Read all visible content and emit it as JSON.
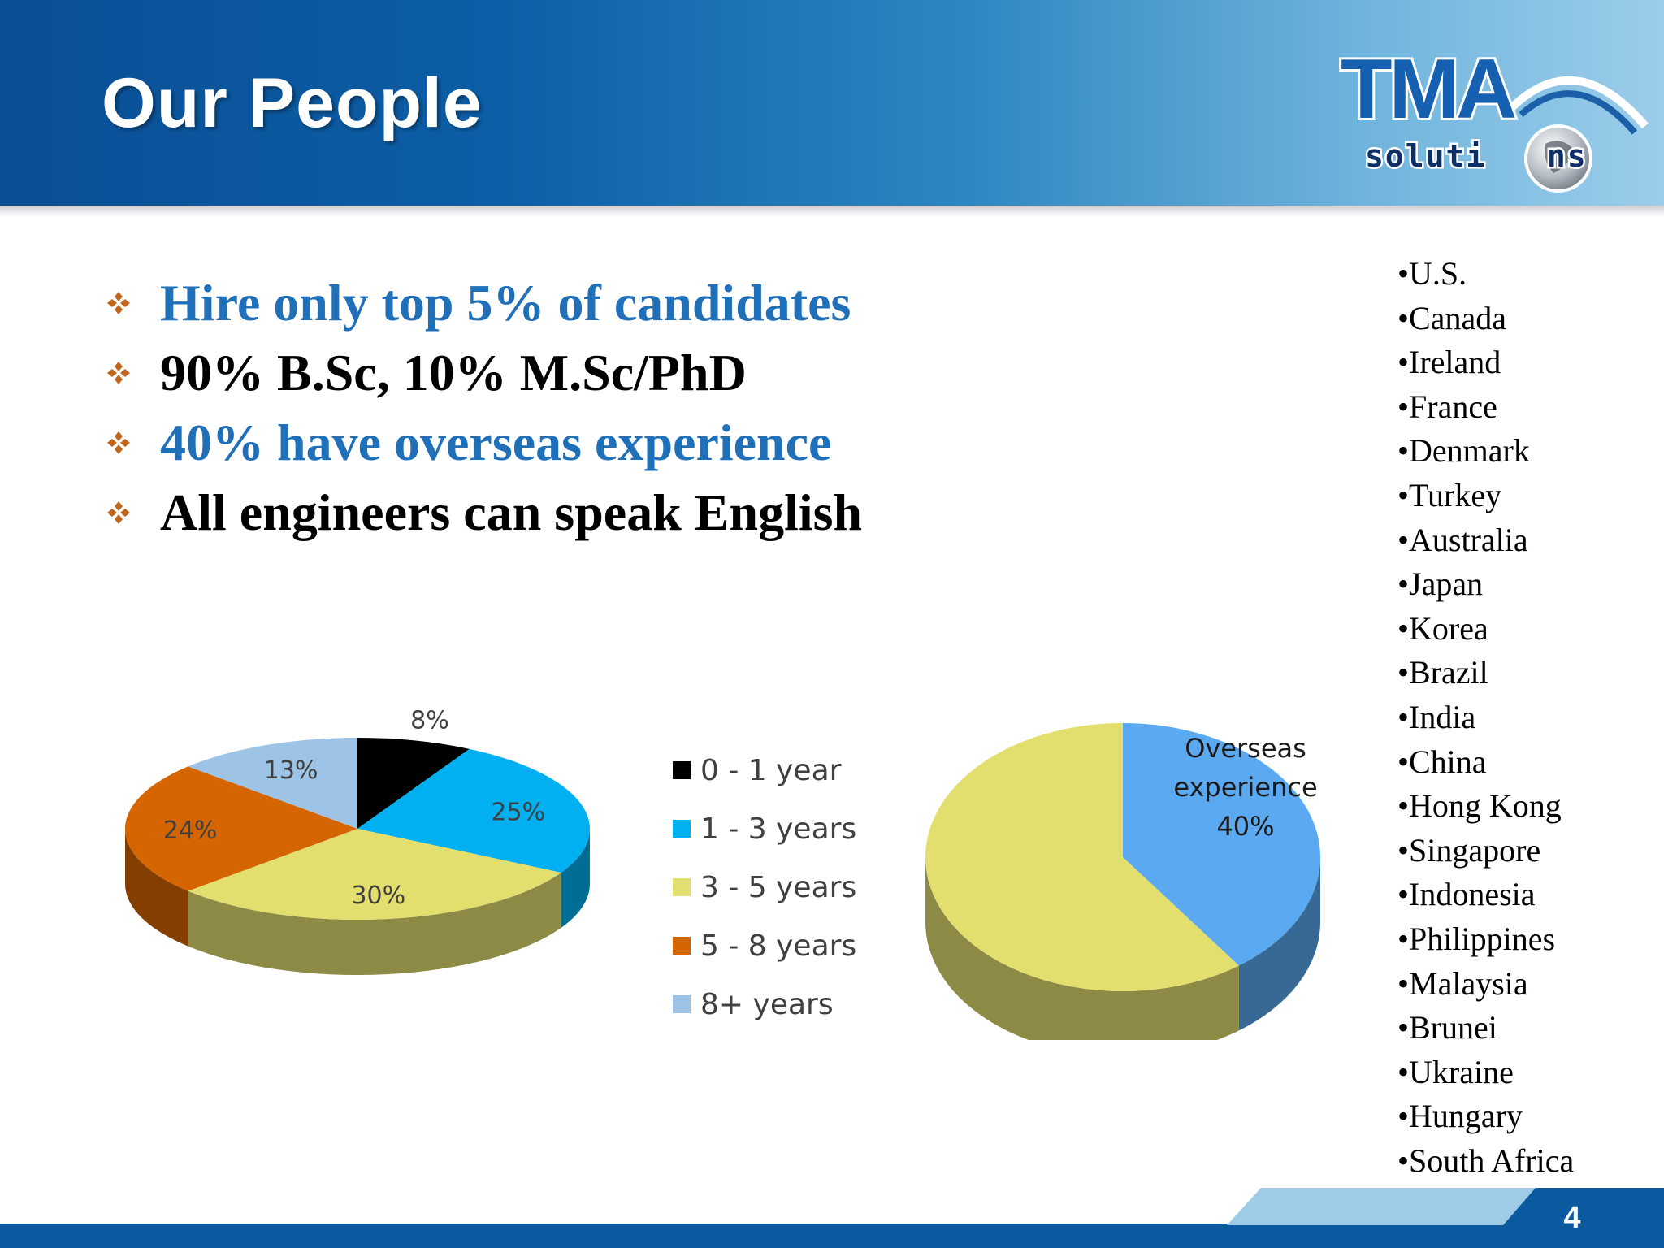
{
  "header": {
    "title": "Our People",
    "logo_top": "TMA",
    "logo_bottom": "soluti   ns"
  },
  "bullets": [
    {
      "text": "Hire only top 5% of candidates",
      "color": "#1f6fb9"
    },
    {
      "text": "90% B.Sc, 10% M.Sc/PhD",
      "color": "#000000"
    },
    {
      "text": "40% have overseas experience",
      "color": "#1f6fb9"
    },
    {
      "text": "All engineers can speak English",
      "color": "#000000"
    }
  ],
  "countries": [
    "•U.S.",
    "•Canada",
    "•Ireland",
    "•France",
    "•Denmark",
    "•Turkey",
    "•Australia",
    "•Japan",
    "•Korea",
    "•Brazil",
    "•India",
    "•China",
    "•Hong Kong",
    "•Singapore",
    "•Indonesia",
    "•Philippines",
    "•Malaysia",
    "•Brunei",
    "•Ukraine",
    "•Hungary",
    "•South Africa"
  ],
  "chart_data": [
    {
      "type": "pie",
      "title": "",
      "legend_position": "right",
      "categories": [
        "0 - 1 year",
        "1 - 3 years",
        "3 - 5 years",
        "5 - 8 years",
        "8+ years"
      ],
      "values": [
        8,
        25,
        30,
        24,
        13
      ],
      "labels": [
        "8%",
        "25%",
        "30%",
        "24%",
        "13%"
      ],
      "colors": [
        "#000000",
        "#00b0f0",
        "#e2df6e",
        "#d56500",
        "#9dc3e6"
      ]
    },
    {
      "type": "pie",
      "title": "",
      "categories": [
        "Overseas experience",
        ""
      ],
      "values": [
        40,
        60
      ],
      "label": {
        "line1": "Overseas",
        "line2": "experience",
        "line3": "40%"
      },
      "colors": [
        "#5ba9f0",
        "#e2df6e"
      ]
    }
  ],
  "page_number": "4"
}
